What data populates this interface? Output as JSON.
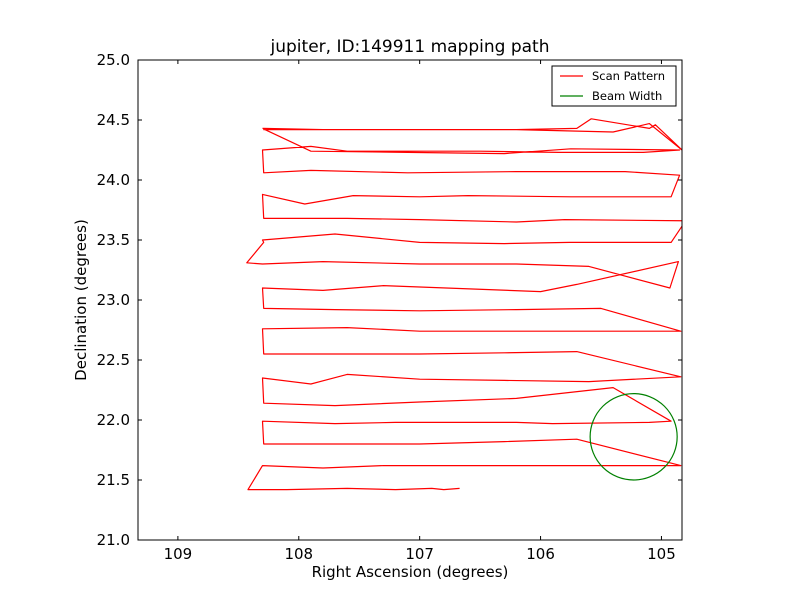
{
  "chart_data": {
    "type": "line",
    "title": "jupiter, ID:149911 mapping path",
    "xlabel": "Right Ascension (degrees)",
    "ylabel": "Declination (degrees)",
    "xlim": [
      109.33,
      104.83
    ],
    "ylim": [
      21.0,
      25.0
    ],
    "x_inverted": true,
    "xticks": [
      109,
      108,
      107,
      106,
      105
    ],
    "xtick_labels": [
      "109",
      "108",
      "107",
      "106",
      "105"
    ],
    "yticks": [
      21.0,
      21.5,
      22.0,
      22.5,
      23.0,
      23.5,
      24.0,
      24.5,
      25.0
    ],
    "ytick_labels": [
      "21.0",
      "21.5",
      "22.0",
      "22.5",
      "23.0",
      "23.5",
      "24.0",
      "24.5",
      "25.0"
    ],
    "grid": false,
    "legend_position": "top-right",
    "series": [
      {
        "name": "Scan Pattern",
        "color": "#ff0000",
        "style": "line",
        "x": [
          106.67,
          106.8,
          106.9,
          107.2,
          107.6,
          108.1,
          108.42,
          108.3,
          107.8,
          107.3,
          106.3,
          105.2,
          104.84,
          105.7,
          106.3,
          107.0,
          107.6,
          108.29,
          108.3,
          107.7,
          107.2,
          106.2,
          105.9,
          105.1,
          104.92,
          105.4,
          106.2,
          107.0,
          107.7,
          108.29,
          108.3,
          107.9,
          107.6,
          107.0,
          106.3,
          105.6,
          104.84,
          105.7,
          106.3,
          107.0,
          107.7,
          108.29,
          108.3,
          107.6,
          107.0,
          106.0,
          105.8,
          104.92,
          104.84,
          105.5,
          106.2,
          107.0,
          107.7,
          108.29,
          108.3,
          107.8,
          107.3,
          106.0,
          105.7,
          104.86,
          104.93,
          105.6,
          106.2,
          107.0,
          107.8,
          108.3,
          108.43,
          108.29,
          108.3,
          107.7,
          107.0,
          106.3,
          105.76,
          104.92,
          104.8,
          105.8,
          106.2,
          107.0,
          107.6,
          108.29,
          108.3,
          107.95,
          107.55,
          107.0,
          106.6,
          105.75,
          105.05,
          104.92,
          104.85,
          105.3,
          106.2,
          107.1,
          107.9,
          108.29,
          108.3,
          107.9,
          107.6,
          107.2,
          106.5,
          105.85,
          105.15,
          104.85,
          105.75,
          106.3,
          107.1,
          107.9,
          108.28,
          108.29,
          107.9,
          107.3,
          106.3,
          106.2,
          105.7,
          105.58,
          105.1,
          105.05,
          104.83,
          105.1,
          105.4,
          106.2,
          107.0,
          107.8,
          108.3
        ],
        "y": [
          21.43,
          21.42,
          21.43,
          21.42,
          21.43,
          21.42,
          21.42,
          21.62,
          21.6,
          21.62,
          21.62,
          21.62,
          21.62,
          21.84,
          21.82,
          21.8,
          21.8,
          21.8,
          21.99,
          21.97,
          21.98,
          21.98,
          21.97,
          21.98,
          21.99,
          22.27,
          22.18,
          22.15,
          22.12,
          22.14,
          22.35,
          22.3,
          22.38,
          22.34,
          22.33,
          22.32,
          22.36,
          22.57,
          22.56,
          22.55,
          22.55,
          22.55,
          22.76,
          22.77,
          22.74,
          22.74,
          22.74,
          22.74,
          22.74,
          22.93,
          22.92,
          22.91,
          22.92,
          22.93,
          23.1,
          23.08,
          23.12,
          23.07,
          23.13,
          23.32,
          23.1,
          23.28,
          23.3,
          23.3,
          23.32,
          23.3,
          23.31,
          23.48,
          23.5,
          23.55,
          23.48,
          23.47,
          23.48,
          23.48,
          23.66,
          23.67,
          23.65,
          23.67,
          23.68,
          23.68,
          23.88,
          23.8,
          23.87,
          23.86,
          23.87,
          23.86,
          23.86,
          23.86,
          24.04,
          24.07,
          24.07,
          24.06,
          24.08,
          24.06,
          24.25,
          24.28,
          24.24,
          24.24,
          24.24,
          24.23,
          24.23,
          24.25,
          24.26,
          24.22,
          24.23,
          24.24,
          24.42,
          24.42,
          24.42,
          24.42,
          24.42,
          24.42,
          24.43,
          24.51,
          24.43,
          24.46,
          24.25,
          24.47,
          24.4,
          24.42,
          24.42,
          24.42,
          24.43
        ]
      },
      {
        "name": "Beam Width",
        "color": "#008000",
        "style": "circle",
        "center": [
          105.23,
          21.86
        ],
        "radius": 0.36
      }
    ]
  }
}
